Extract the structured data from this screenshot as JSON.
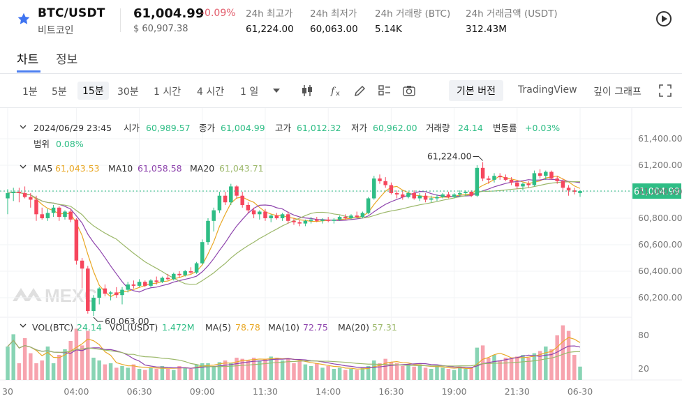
{
  "header": {
    "pair": "BTC/USDT",
    "pair_name": "비트코인",
    "price": "61,004.99",
    "change": "-0.09%",
    "usd_price": "$ 60,907.38",
    "stats": [
      {
        "label": "24h 최고가",
        "value": "61,224.00"
      },
      {
        "label": "24h 최저가",
        "value": "60,063.00"
      },
      {
        "label": "24h 거래량 (BTC)",
        "value": "5.14K"
      },
      {
        "label": "24h 거래금액 (USDT)",
        "value": "312.43M"
      }
    ],
    "colors": {
      "up": "#2ebd85",
      "down": "#f6465d",
      "accent": "#4d7ff0"
    }
  },
  "tabs": [
    {
      "label": "차트"
    },
    {
      "label": "정보"
    }
  ],
  "toolbar": {
    "intervals": [
      "1분",
      "5분",
      "15분",
      "30분",
      "1 시간",
      "4 시간",
      "1 일"
    ],
    "selected_interval": "15분",
    "basic_label": "기본 버전",
    "tradingview_label": "TradingView",
    "depth_label": "깊이 그래프",
    "icons": [
      "chevron-down-icon",
      "candle-type-icon",
      "fx-icon",
      "pencil-icon",
      "layout-icon",
      "camera-icon",
      "fullscreen-icon"
    ]
  },
  "legend": {
    "date": "2024/06/29 23:45",
    "open_label": "시가",
    "open": "60,989.57",
    "close_label": "종가",
    "close": "61,004.99",
    "high_label": "고가",
    "high": "61,012.32",
    "low_label": "저가",
    "low": "60,962.00",
    "vol_label": "거래량",
    "vol": "24.14",
    "chg_label": "변동률",
    "chg": "+0.03%",
    "range_label": "범위",
    "range": "0.08%",
    "ma5_label": "MA5",
    "ma5": "61,043.53",
    "ma10_label": "MA10",
    "ma10": "61,058.58",
    "ma20_label": "MA20",
    "ma20": "61,043.71",
    "vol_btc_label": "VOL(BTC)",
    "vol_btc": "24.14",
    "vol_usdt_label": "VOL(USDT)",
    "vol_usdt": "1.472M",
    "vma5_label": "MA(5)",
    "vma5": "78.78",
    "vma10_label": "MA(10)",
    "vma10": "72.75",
    "vma20_label": "MA(20)",
    "vma20": "57.31",
    "ma_colors": {
      "ma5": "#e9a826",
      "ma10": "#8e44ad",
      "ma20": "#9cb86a"
    }
  },
  "chart_data": {
    "type": "candlestick",
    "interval": "15m",
    "y_ticks": [
      "61,400.00",
      "61,200.00",
      "61,000.00",
      "60,800.00",
      "60,600.00",
      "60,400.00",
      "60,200.00"
    ],
    "y_tick_values": [
      61400,
      61200,
      61000,
      60800,
      60600,
      60400,
      60200
    ],
    "ylim": [
      60000,
      61500
    ],
    "vol_ticks": [
      "80",
      "20"
    ],
    "vol_tick_values": [
      80,
      20
    ],
    "vol_ylim": [
      0,
      105
    ],
    "x_ticks": [
      "30",
      "04:00",
      "06:30",
      "09:00",
      "11:30",
      "14:00",
      "16:30",
      "19:00",
      "21:30",
      "06-30"
    ],
    "x_tick_index": [
      0,
      12,
      23,
      34,
      45,
      56,
      67,
      78,
      89,
      100
    ],
    "last_price": 61004.99,
    "last_price_label": "61,004.99",
    "high_marker": {
      "label": "61,224.00",
      "value": 61224
    },
    "low_marker": {
      "label": "60,063.00",
      "value": 60063
    },
    "watermark": "MEXC",
    "candles": [
      {
        "o": 60950,
        "h": 61020,
        "l": 60830,
        "c": 60990,
        "v": 60
      },
      {
        "o": 60990,
        "h": 61030,
        "l": 60930,
        "c": 61000,
        "v": 82
      },
      {
        "o": 61000,
        "h": 61030,
        "l": 60920,
        "c": 60990,
        "v": 30
      },
      {
        "o": 60990,
        "h": 61040,
        "l": 60950,
        "c": 60960,
        "v": 75
      },
      {
        "o": 60960,
        "h": 60990,
        "l": 60880,
        "c": 60940,
        "v": 48
      },
      {
        "o": 60940,
        "h": 60970,
        "l": 60780,
        "c": 60830,
        "v": 30
      },
      {
        "o": 60830,
        "h": 60880,
        "l": 60790,
        "c": 60800,
        "v": 35
      },
      {
        "o": 60800,
        "h": 60870,
        "l": 60780,
        "c": 60840,
        "v": 60
      },
      {
        "o": 60840,
        "h": 60900,
        "l": 60810,
        "c": 60880,
        "v": 30
      },
      {
        "o": 60880,
        "h": 60890,
        "l": 60780,
        "c": 60810,
        "v": 45
      },
      {
        "o": 60810,
        "h": 60860,
        "l": 60790,
        "c": 60850,
        "v": 55
      },
      {
        "o": 60850,
        "h": 60870,
        "l": 60770,
        "c": 60790,
        "v": 70
      },
      {
        "o": 60790,
        "h": 60800,
        "l": 60450,
        "c": 60480,
        "v": 92
      },
      {
        "o": 60480,
        "h": 60500,
        "l": 60270,
        "c": 60420,
        "v": 62
      },
      {
        "o": 60420,
        "h": 60440,
        "l": 60080,
        "c": 60100,
        "v": 88
      },
      {
        "o": 60100,
        "h": 60220,
        "l": 60063,
        "c": 60200,
        "v": 40
      },
      {
        "o": 60200,
        "h": 60280,
        "l": 60150,
        "c": 60270,
        "v": 35
      },
      {
        "o": 60270,
        "h": 60300,
        "l": 60210,
        "c": 60230,
        "v": 28
      },
      {
        "o": 60230,
        "h": 60250,
        "l": 60180,
        "c": 60240,
        "v": 30
      },
      {
        "o": 60240,
        "h": 60280,
        "l": 60200,
        "c": 60220,
        "v": 22
      },
      {
        "o": 60220,
        "h": 60280,
        "l": 60150,
        "c": 60260,
        "v": 25
      },
      {
        "o": 60260,
        "h": 60320,
        "l": 60240,
        "c": 60300,
        "v": 22
      },
      {
        "o": 60300,
        "h": 60330,
        "l": 60270,
        "c": 60290,
        "v": 28
      },
      {
        "o": 60290,
        "h": 60340,
        "l": 60280,
        "c": 60320,
        "v": 20
      },
      {
        "o": 60320,
        "h": 60330,
        "l": 60280,
        "c": 60290,
        "v": 18
      },
      {
        "o": 60290,
        "h": 60340,
        "l": 60280,
        "c": 60330,
        "v": 22
      },
      {
        "o": 60330,
        "h": 60360,
        "l": 60300,
        "c": 60320,
        "v": 20
      },
      {
        "o": 60320,
        "h": 60360,
        "l": 60310,
        "c": 60350,
        "v": 25
      },
      {
        "o": 60350,
        "h": 60380,
        "l": 60330,
        "c": 60340,
        "v": 20
      },
      {
        "o": 60340,
        "h": 60390,
        "l": 60330,
        "c": 60380,
        "v": 18
      },
      {
        "o": 60380,
        "h": 60400,
        "l": 60350,
        "c": 60370,
        "v": 25
      },
      {
        "o": 60370,
        "h": 60410,
        "l": 60360,
        "c": 60400,
        "v": 22
      },
      {
        "o": 60400,
        "h": 60430,
        "l": 60380,
        "c": 60390,
        "v": 20
      },
      {
        "o": 60390,
        "h": 60470,
        "l": 60380,
        "c": 60460,
        "v": 28
      },
      {
        "o": 60460,
        "h": 60640,
        "l": 60450,
        "c": 60620,
        "v": 30
      },
      {
        "o": 60620,
        "h": 60800,
        "l": 60600,
        "c": 60780,
        "v": 30
      },
      {
        "o": 60780,
        "h": 60880,
        "l": 60700,
        "c": 60860,
        "v": 25
      },
      {
        "o": 60860,
        "h": 61000,
        "l": 60840,
        "c": 60970,
        "v": 32
      },
      {
        "o": 60970,
        "h": 61000,
        "l": 60900,
        "c": 60920,
        "v": 35
      },
      {
        "o": 60920,
        "h": 61060,
        "l": 60900,
        "c": 61040,
        "v": 30
      },
      {
        "o": 61040,
        "h": 61050,
        "l": 60950,
        "c": 60970,
        "v": 40
      },
      {
        "o": 60970,
        "h": 61000,
        "l": 60880,
        "c": 60900,
        "v": 38
      },
      {
        "o": 60900,
        "h": 60920,
        "l": 60840,
        "c": 60860,
        "v": 35
      },
      {
        "o": 60860,
        "h": 60880,
        "l": 60800,
        "c": 60830,
        "v": 40
      },
      {
        "o": 60830,
        "h": 60860,
        "l": 60790,
        "c": 60850,
        "v": 35
      },
      {
        "o": 60850,
        "h": 60870,
        "l": 60780,
        "c": 60800,
        "v": 38
      },
      {
        "o": 60800,
        "h": 60830,
        "l": 60770,
        "c": 60820,
        "v": 42
      },
      {
        "o": 60820,
        "h": 60840,
        "l": 60790,
        "c": 60800,
        "v": 40
      },
      {
        "o": 60800,
        "h": 60840,
        "l": 60780,
        "c": 60830,
        "v": 35
      },
      {
        "o": 60830,
        "h": 60850,
        "l": 60760,
        "c": 60780,
        "v": 38
      },
      {
        "o": 60780,
        "h": 60800,
        "l": 60750,
        "c": 60770,
        "v": 30
      },
      {
        "o": 60770,
        "h": 60790,
        "l": 60740,
        "c": 60760,
        "v": 35
      },
      {
        "o": 60760,
        "h": 60790,
        "l": 60740,
        "c": 60780,
        "v": 28
      },
      {
        "o": 60780,
        "h": 60810,
        "l": 60760,
        "c": 60790,
        "v": 25
      },
      {
        "o": 60790,
        "h": 60810,
        "l": 60770,
        "c": 60780,
        "v": 30
      },
      {
        "o": 60780,
        "h": 60800,
        "l": 60760,
        "c": 60790,
        "v": 22
      },
      {
        "o": 60790,
        "h": 60810,
        "l": 60770,
        "c": 60780,
        "v": 25
      },
      {
        "o": 60780,
        "h": 60800,
        "l": 60760,
        "c": 60790,
        "v": 20
      },
      {
        "o": 60790,
        "h": 60820,
        "l": 60780,
        "c": 60810,
        "v": 22
      },
      {
        "o": 60810,
        "h": 60830,
        "l": 60790,
        "c": 60800,
        "v": 18
      },
      {
        "o": 60800,
        "h": 60830,
        "l": 60790,
        "c": 60820,
        "v": 20
      },
      {
        "o": 60820,
        "h": 60850,
        "l": 60800,
        "c": 60810,
        "v": 18
      },
      {
        "o": 60810,
        "h": 60850,
        "l": 60800,
        "c": 60840,
        "v": 22
      },
      {
        "o": 60840,
        "h": 60960,
        "l": 60830,
        "c": 60950,
        "v": 25
      },
      {
        "o": 60950,
        "h": 61120,
        "l": 60940,
        "c": 61100,
        "v": 35
      },
      {
        "o": 61100,
        "h": 61130,
        "l": 61060,
        "c": 61080,
        "v": 30
      },
      {
        "o": 61080,
        "h": 61110,
        "l": 61030,
        "c": 61050,
        "v": 38
      },
      {
        "o": 61050,
        "h": 61070,
        "l": 60980,
        "c": 60990,
        "v": 32
      },
      {
        "o": 60990,
        "h": 61010,
        "l": 60950,
        "c": 60980,
        "v": 30
      },
      {
        "o": 60980,
        "h": 61010,
        "l": 60940,
        "c": 60960,
        "v": 25
      },
      {
        "o": 60960,
        "h": 61000,
        "l": 60950,
        "c": 60990,
        "v": 28
      },
      {
        "o": 60990,
        "h": 61010,
        "l": 60940,
        "c": 60950,
        "v": 24
      },
      {
        "o": 60950,
        "h": 60990,
        "l": 60930,
        "c": 60970,
        "v": 28
      },
      {
        "o": 60970,
        "h": 60990,
        "l": 60920,
        "c": 60940,
        "v": 22
      },
      {
        "o": 60940,
        "h": 60970,
        "l": 60920,
        "c": 60950,
        "v": 20
      },
      {
        "o": 60950,
        "h": 60980,
        "l": 60930,
        "c": 60960,
        "v": 26
      },
      {
        "o": 60960,
        "h": 60990,
        "l": 60950,
        "c": 60980,
        "v": 22
      },
      {
        "o": 60980,
        "h": 61000,
        "l": 60950,
        "c": 60960,
        "v": 20
      },
      {
        "o": 60960,
        "h": 60990,
        "l": 60950,
        "c": 60980,
        "v": 18
      },
      {
        "o": 60980,
        "h": 61010,
        "l": 60960,
        "c": 60990,
        "v": 24
      },
      {
        "o": 60990,
        "h": 61010,
        "l": 60970,
        "c": 61000,
        "v": 20
      },
      {
        "o": 61000,
        "h": 61010,
        "l": 60960,
        "c": 60970,
        "v": 22
      },
      {
        "o": 60970,
        "h": 61200,
        "l": 60960,
        "c": 61180,
        "v": 58
      },
      {
        "o": 61180,
        "h": 61224,
        "l": 61080,
        "c": 61100,
        "v": 62
      },
      {
        "o": 61100,
        "h": 61120,
        "l": 61060,
        "c": 61090,
        "v": 40
      },
      {
        "o": 61090,
        "h": 61140,
        "l": 61070,
        "c": 61120,
        "v": 45
      },
      {
        "o": 61120,
        "h": 61140,
        "l": 61090,
        "c": 61110,
        "v": 35
      },
      {
        "o": 61110,
        "h": 61130,
        "l": 61080,
        "c": 61090,
        "v": 40
      },
      {
        "o": 61090,
        "h": 61110,
        "l": 61050,
        "c": 61070,
        "v": 38
      },
      {
        "o": 61070,
        "h": 61090,
        "l": 61020,
        "c": 61040,
        "v": 42
      },
      {
        "o": 61040,
        "h": 61070,
        "l": 61010,
        "c": 61060,
        "v": 45
      },
      {
        "o": 61060,
        "h": 61080,
        "l": 61030,
        "c": 61050,
        "v": 40
      },
      {
        "o": 61050,
        "h": 61160,
        "l": 61040,
        "c": 61140,
        "v": 48
      },
      {
        "o": 61140,
        "h": 61170,
        "l": 61100,
        "c": 61120,
        "v": 52
      },
      {
        "o": 61120,
        "h": 61160,
        "l": 61090,
        "c": 61150,
        "v": 60
      },
      {
        "o": 61150,
        "h": 61160,
        "l": 61090,
        "c": 61100,
        "v": 55
      },
      {
        "o": 61100,
        "h": 61120,
        "l": 61060,
        "c": 61080,
        "v": 80
      },
      {
        "o": 61080,
        "h": 61100,
        "l": 61000,
        "c": 61030,
        "v": 98
      },
      {
        "o": 61030,
        "h": 61050,
        "l": 60970,
        "c": 61010,
        "v": 88
      },
      {
        "o": 61010,
        "h": 61030,
        "l": 60980,
        "c": 61000,
        "v": 45
      },
      {
        "o": 60990,
        "h": 61012,
        "l": 60962,
        "c": 61005,
        "v": 24
      }
    ]
  }
}
